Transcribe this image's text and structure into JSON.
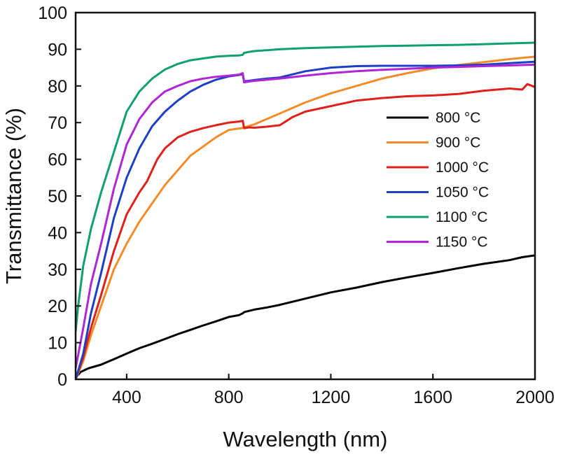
{
  "chart_data": {
    "type": "line",
    "title": "",
    "xlabel": "Wavelength (nm)",
    "ylabel": "Transmittance (%)",
    "xlim": [
      200,
      2000
    ],
    "ylim": [
      0,
      100
    ],
    "xticks": [
      400,
      800,
      1200,
      1600,
      2000
    ],
    "yticks": [
      0,
      10,
      20,
      30,
      40,
      50,
      60,
      70,
      80,
      90,
      100
    ],
    "grid": false,
    "legend_position": "right",
    "series": [
      {
        "name": "800 °C",
        "color": "#000000",
        "x": [
          200,
          220,
          250,
          300,
          350,
          400,
          450,
          500,
          550,
          600,
          650,
          700,
          750,
          800,
          840,
          855,
          860,
          870,
          900,
          950,
          1000,
          1100,
          1200,
          1300,
          1400,
          1500,
          1600,
          1700,
          1800,
          1900,
          1950,
          2000
        ],
        "y": [
          0.5,
          2.0,
          3.0,
          4.0,
          5.5,
          7.0,
          8.5,
          9.7,
          11.0,
          12.3,
          13.5,
          14.7,
          15.8,
          17.0,
          17.5,
          18.0,
          18.3,
          18.5,
          19.0,
          19.6,
          20.3,
          22.0,
          23.7,
          25.0,
          26.5,
          27.8,
          29.0,
          30.3,
          31.5,
          32.5,
          33.3,
          33.8
        ]
      },
      {
        "name": "900 °C",
        "color": "#f28c28",
        "x": [
          200,
          230,
          260,
          300,
          350,
          400,
          450,
          500,
          550,
          600,
          650,
          700,
          750,
          800,
          850,
          900,
          1000,
          1100,
          1200,
          1300,
          1400,
          1500,
          1600,
          1700,
          1800,
          1900,
          2000
        ],
        "y": [
          0,
          5,
          12,
          20,
          30,
          37,
          43,
          48,
          53,
          57,
          61,
          63.5,
          66,
          68,
          68.5,
          69.5,
          72.5,
          75.5,
          78,
          80,
          82,
          83.5,
          84.8,
          85.7,
          86.5,
          87.3,
          88
        ]
      },
      {
        "name": "1000 °C",
        "color": "#e0201b",
        "x": [
          200,
          230,
          260,
          300,
          350,
          400,
          450,
          480,
          500,
          520,
          550,
          600,
          650,
          700,
          750,
          800,
          840,
          855,
          860,
          880,
          900,
          950,
          1000,
          1050,
          1100,
          1200,
          1300,
          1400,
          1500,
          1600,
          1700,
          1800,
          1900,
          1950,
          1970,
          2000
        ],
        "y": [
          0,
          6,
          14,
          23,
          35,
          45,
          51,
          54,
          57,
          60,
          63,
          66,
          67.5,
          68.5,
          69.3,
          70,
          70.3,
          70.5,
          68.5,
          68.7,
          68.6,
          68.9,
          69.3,
          71.5,
          73,
          74.5,
          76,
          76.7,
          77.2,
          77.4,
          77.8,
          78.7,
          79.3,
          79.0,
          80.5,
          79.7
        ]
      },
      {
        "name": "1050 °C",
        "color": "#1e3fc4",
        "x": [
          200,
          230,
          260,
          300,
          350,
          400,
          450,
          500,
          550,
          600,
          650,
          700,
          750,
          800,
          840,
          855,
          860,
          880,
          900,
          950,
          1000,
          1100,
          1200,
          1300,
          1400,
          1500,
          1600,
          1700,
          1800,
          1900,
          2000
        ],
        "y": [
          0,
          7,
          18,
          29,
          44,
          55,
          63,
          69,
          73,
          76,
          78.5,
          80.3,
          81.7,
          82.6,
          83.0,
          83.2,
          81.3,
          81.4,
          81.6,
          82.0,
          82.3,
          84.0,
          85.0,
          85.4,
          85.5,
          85.5,
          85.5,
          85.6,
          85.8,
          86.2,
          86.6
        ]
      },
      {
        "name": "1100 °C",
        "color": "#0f9f73",
        "x": [
          200,
          210,
          230,
          260,
          300,
          350,
          400,
          450,
          500,
          550,
          600,
          650,
          700,
          750,
          800,
          840,
          855,
          860,
          880,
          900,
          1000,
          1100,
          1200,
          1300,
          1400,
          1500,
          1600,
          1700,
          1800,
          1900,
          2000
        ],
        "y": [
          13,
          20,
          31,
          41,
          51,
          62,
          73,
          78.5,
          82,
          84.5,
          86,
          87,
          87.5,
          88,
          88.2,
          88.3,
          88.5,
          89.0,
          89.3,
          89.5,
          90.0,
          90.3,
          90.5,
          90.7,
          90.9,
          91.0,
          91.1,
          91.2,
          91.4,
          91.6,
          91.8
        ]
      },
      {
        "name": "1150 °C",
        "color": "#b026d6",
        "x": [
          200,
          230,
          260,
          300,
          350,
          400,
          450,
          500,
          550,
          600,
          650,
          700,
          750,
          800,
          840,
          855,
          860,
          880,
          900,
          1000,
          1100,
          1200,
          1300,
          1400,
          1500,
          1600,
          1700,
          1800,
          1900,
          2000
        ],
        "y": [
          3,
          14,
          26,
          37,
          52,
          64,
          71,
          75.5,
          78.5,
          80,
          81.3,
          82,
          82.5,
          82.8,
          83.1,
          83.5,
          81.0,
          81.2,
          81.4,
          82.0,
          82.8,
          83.5,
          84.0,
          84.4,
          84.7,
          85.0,
          85.2,
          85.4,
          85.6,
          85.8
        ]
      }
    ]
  }
}
